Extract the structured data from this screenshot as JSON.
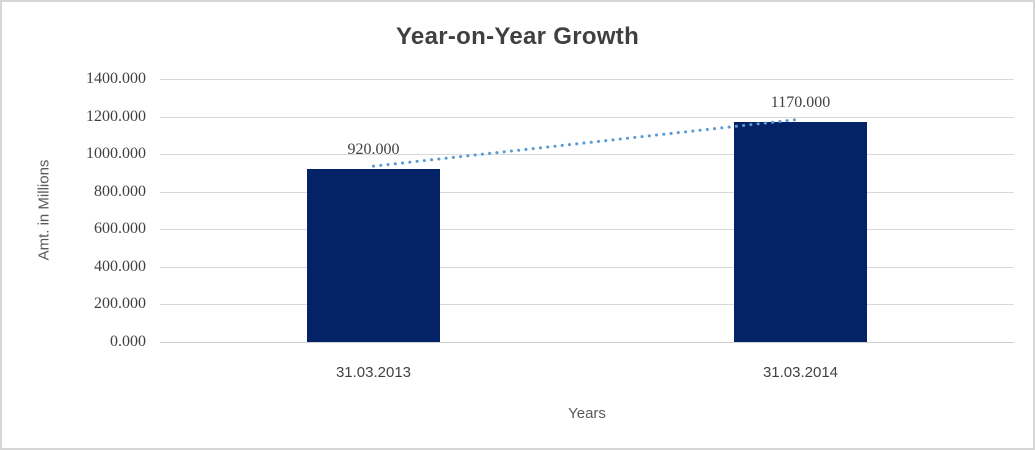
{
  "chart_data": {
    "type": "bar",
    "title": "Year-on-Year Growth",
    "xlabel": "Years",
    "ylabel": "Amt. in Millions",
    "categories": [
      "31.03.2013",
      "31.03.2014"
    ],
    "values": [
      920,
      1170
    ],
    "data_labels": [
      "920.000",
      "1170.000"
    ],
    "y_ticks": [
      "0.000",
      "200.000",
      "400.000",
      "600.000",
      "800.000",
      "1000.000",
      "1200.000",
      "1400.000"
    ],
    "y_tick_values": [
      0,
      200,
      400,
      600,
      800,
      1000,
      1200,
      1400
    ],
    "ylim": [
      0,
      1400
    ],
    "grid": true,
    "legend": "none",
    "trendline": {
      "style": "dotted",
      "connects": "bar tops (920 to 1170)"
    },
    "colors": {
      "bar": "#032366",
      "trendline": "#5b9bd5",
      "gridline": "#d9d9d9",
      "axis_line": "#d0cece",
      "title_text": "#404040",
      "tick_text": "#3f3f3f",
      "axis_title_text": "#595959",
      "border": "#d6d6d6",
      "background": "#ffffff"
    }
  }
}
